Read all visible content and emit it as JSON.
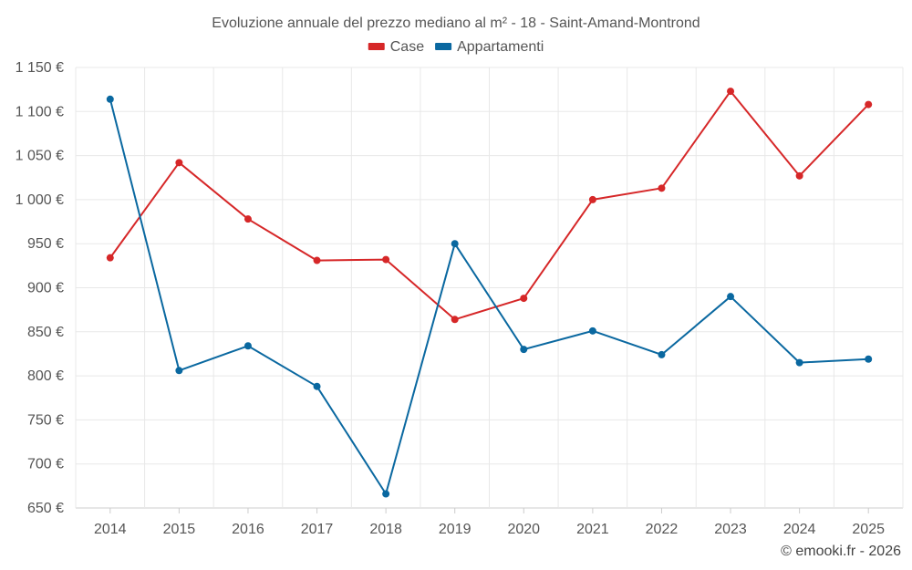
{
  "chart_data": {
    "type": "line",
    "title": "Evoluzione annuale del prezzo mediano al m² - 18 - Saint-Amand-Montrond",
    "categories": [
      "2014",
      "2015",
      "2016",
      "2017",
      "2018",
      "2019",
      "2020",
      "2021",
      "2022",
      "2023",
      "2024",
      "2025"
    ],
    "ylim": [
      650,
      1150
    ],
    "yticks": [
      650,
      700,
      750,
      800,
      850,
      900,
      950,
      1000,
      1050,
      1100,
      1150
    ],
    "ytick_labels": [
      "650 €",
      "700 €",
      "750 €",
      "800 €",
      "850 €",
      "900 €",
      "950 €",
      "1 000 €",
      "1 050 €",
      "1 100 €",
      "1 150 €"
    ],
    "series": [
      {
        "name": "Case",
        "color": "#d62728",
        "values": [
          934,
          1042,
          978,
          931,
          932,
          864,
          888,
          1000,
          1013,
          1123,
          1027,
          1108
        ]
      },
      {
        "name": "Appartamenti",
        "color": "#0a68a0",
        "values": [
          1114,
          806,
          834,
          788,
          666,
          950,
          830,
          851,
          824,
          890,
          815,
          819
        ]
      }
    ],
    "grid": true,
    "legend": "top-center"
  },
  "credit": "© emooki.fr - 2026"
}
